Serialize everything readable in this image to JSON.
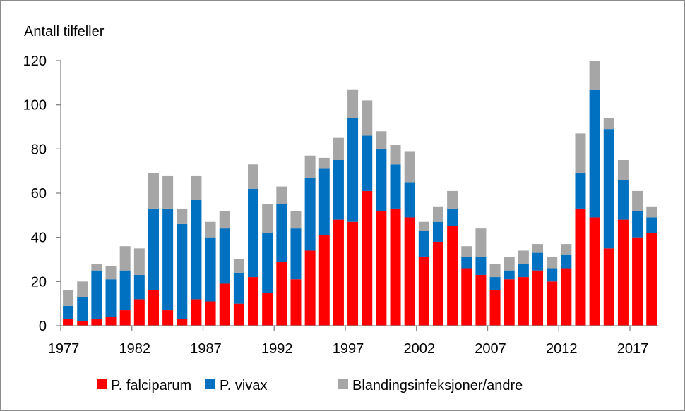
{
  "chart_data": {
    "type": "bar",
    "stacked": true,
    "title": "",
    "ylabel": "Antall tilfeller",
    "xlabel": "",
    "ylim": [
      0,
      120
    ],
    "yticks": [
      0,
      20,
      40,
      60,
      80,
      100,
      120
    ],
    "xtick_labels": [
      "1977",
      "1982",
      "1987",
      "1992",
      "1997",
      "2002",
      "2007",
      "2012",
      "2017"
    ],
    "grid": false,
    "legend_position": "bottom",
    "categories": [
      1977,
      1978,
      1979,
      1980,
      1981,
      1982,
      1983,
      1984,
      1985,
      1986,
      1987,
      1988,
      1989,
      1990,
      1991,
      1992,
      1993,
      1994,
      1995,
      1996,
      1997,
      1998,
      1999,
      2000,
      2001,
      2002,
      2003,
      2004,
      2005,
      2006,
      2007,
      2008,
      2009,
      2010,
      2011,
      2012,
      2013,
      2014,
      2015,
      2016,
      2017,
      2018
    ],
    "series": [
      {
        "name": "P. falciparum",
        "color": "#ff0000",
        "values": [
          3,
          2,
          3,
          4,
          7,
          12,
          16,
          7,
          3,
          12,
          11,
          19,
          10,
          22,
          15,
          29,
          21,
          34,
          41,
          48,
          47,
          61,
          52,
          53,
          49,
          31,
          38,
          45,
          26,
          23,
          16,
          21,
          22,
          25,
          20,
          26,
          53,
          49,
          35,
          48,
          40,
          42
        ]
      },
      {
        "name": "P. vivax",
        "color": "#0070c0",
        "values": [
          6,
          11,
          22,
          17,
          18,
          11,
          37,
          46,
          43,
          45,
          29,
          25,
          14,
          40,
          27,
          26,
          23,
          33,
          30,
          27,
          47,
          25,
          28,
          20,
          16,
          12,
          9,
          8,
          5,
          8,
          6,
          4,
          6,
          8,
          6,
          6,
          16,
          58,
          54,
          18,
          12,
          7
        ]
      },
      {
        "name": "Blandingsinfeksjoner/andre",
        "color": "#a6a6a6",
        "values": [
          7,
          7,
          3,
          6,
          11,
          12,
          16,
          15,
          7,
          11,
          7,
          8,
          6,
          11,
          13,
          8,
          8,
          10,
          5,
          10,
          13,
          16,
          8,
          9,
          14,
          4,
          7,
          8,
          5,
          13,
          6,
          6,
          6,
          4,
          5,
          5,
          18,
          13,
          5,
          9,
          9,
          5
        ]
      }
    ]
  }
}
